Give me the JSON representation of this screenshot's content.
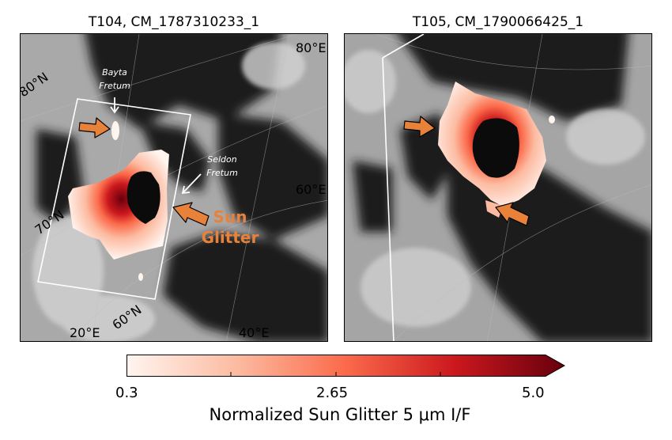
{
  "panels": [
    {
      "title": "T104, CM_1787310233_1",
      "labels": {
        "lon_80": "80°E",
        "lat_80": "80°N",
        "lon_60": "60°E",
        "lat_70": "70°N",
        "lat_60": "60°N",
        "lon_20": "20°E",
        "lon_40": "40°E"
      },
      "annotations": {
        "bayta_1": "Bayta",
        "bayta_2": "Fretum",
        "seldon_1": "Seldon",
        "seldon_2": "Fretum",
        "sun_1": "Sun",
        "sun_2": "Glitter"
      }
    },
    {
      "title": "T105, CM_1790066425_1"
    }
  ],
  "colorbar": {
    "min": "0.3",
    "mid": "2.65",
    "max": "5.0",
    "label": "Normalized Sun Glitter 5 μm I/F",
    "colors": [
      "#fff5f0",
      "#fcbba1",
      "#fb6a4a",
      "#cb181d",
      "#67000d"
    ]
  },
  "colors": {
    "arrow": "#e8823a",
    "frame": "#ffffff"
  }
}
